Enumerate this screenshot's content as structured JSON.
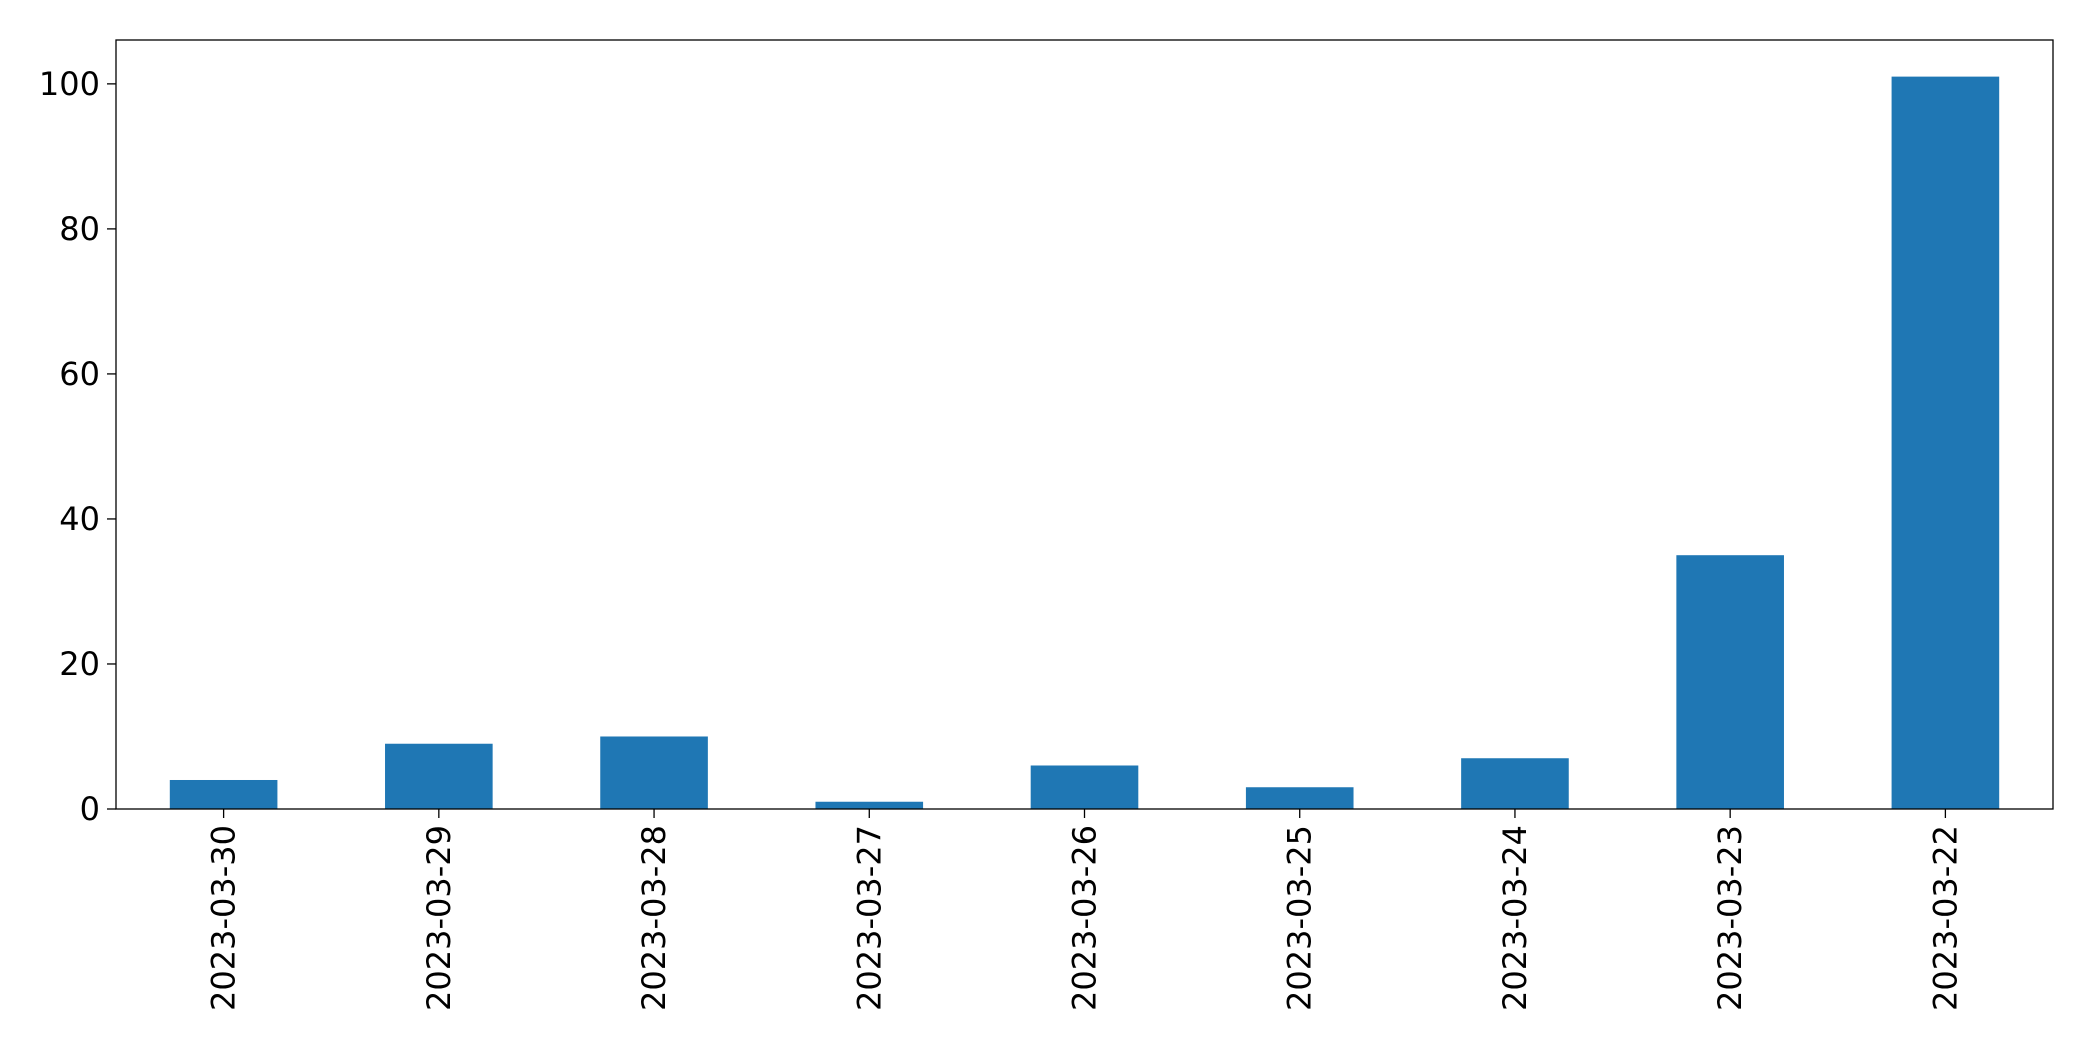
{
  "chart_data": {
    "type": "bar",
    "categories": [
      "2023-03-30",
      "2023-03-29",
      "2023-03-28",
      "2023-03-27",
      "2023-03-26",
      "2023-03-25",
      "2023-03-24",
      "2023-03-23",
      "2023-03-22"
    ],
    "values": [
      4,
      9,
      10,
      1,
      6,
      3,
      7,
      35,
      101
    ],
    "color": "#1f77b4",
    "ylim": [
      0,
      106.05
    ],
    "yticks": [
      0,
      20,
      40,
      60,
      80,
      100
    ],
    "grid": false
  }
}
